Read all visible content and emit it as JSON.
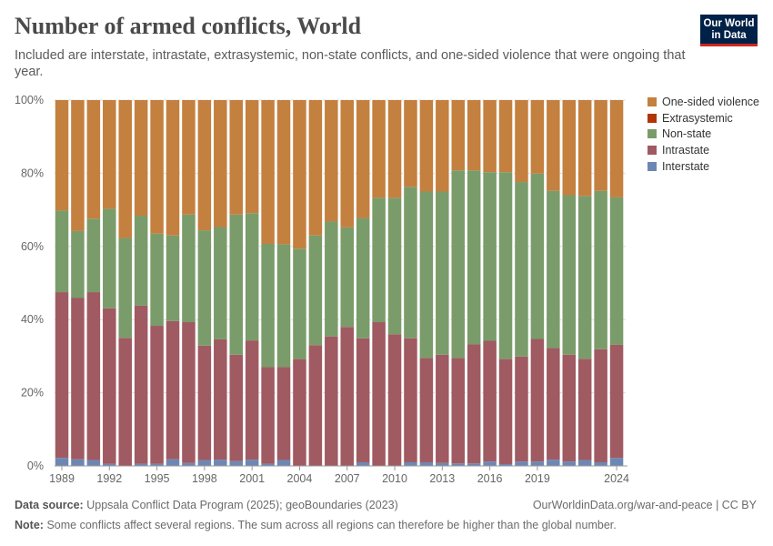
{
  "header": {
    "title": "Number of armed conflicts, World",
    "subtitle": "Included are interstate, intrastate, extrasystemic, non-state conflicts, and one-sided violence that were ongoing that year.",
    "logo": "Our World in Data"
  },
  "footer": {
    "source_label": "Data source:",
    "source": "Uppsala Conflict Data Program (2025); geoBoundaries (2023)",
    "url": "OurWorldinData.org/war-and-peace | CC BY",
    "note_label": "Note:",
    "note": "Some conflicts affect several regions. The sum across all regions can therefore be higher than the global number."
  },
  "chart_data": {
    "type": "bar",
    "stacked": true,
    "relative": true,
    "x": [
      1989,
      1990,
      1991,
      1992,
      1993,
      1994,
      1995,
      1996,
      1997,
      1998,
      1999,
      2000,
      2001,
      2002,
      2003,
      2004,
      2005,
      2006,
      2007,
      2008,
      2009,
      2010,
      2011,
      2012,
      2013,
      2014,
      2015,
      2016,
      2017,
      2018,
      2019,
      2020,
      2021,
      2022,
      2023,
      2024
    ],
    "x_tick_labels": [
      "1989",
      "1992",
      "1995",
      "1998",
      "2001",
      "2004",
      "2007",
      "2010",
      "2013",
      "2016",
      "2019",
      "2024"
    ],
    "y_tick_labels": [
      "0%",
      "20%",
      "40%",
      "60%",
      "80%",
      "100%"
    ],
    "ylim": [
      0,
      100
    ],
    "grid": "horizontal",
    "legend_position": "right",
    "series": [
      {
        "name": "Interstate",
        "color": "#6D87B4",
        "values": [
          2.2,
          1.8,
          1.6,
          0.6,
          0,
          0.6,
          0.6,
          1.8,
          0.8,
          1.6,
          1.7,
          1.3,
          1.7,
          0.6,
          1.6,
          0,
          0,
          0,
          0,
          1.0,
          0,
          0,
          1.0,
          1.0,
          0.8,
          0.7,
          0.7,
          1.2,
          0.5,
          1.2,
          1.2,
          1.7,
          1.2,
          1.6,
          1.0,
          2.2
        ]
      },
      {
        "name": "Intrastate",
        "color": "#A05A61",
        "values": [
          45.3,
          44.2,
          45.9,
          42.5,
          35.0,
          43.2,
          37.7,
          37.8,
          38.5,
          31.3,
          32.9,
          29.1,
          32.6,
          26.4,
          25.4,
          29.2,
          33.0,
          35.4,
          38.0,
          33.9,
          39.3,
          36.0,
          33.9,
          28.5,
          29.6,
          28.8,
          32.5,
          33.0,
          28.7,
          28.7,
          33.5,
          30.5,
          29.2,
          27.7,
          30.9,
          30.9
        ]
      },
      {
        "name": "Non-state",
        "color": "#7A9C6A",
        "values": [
          22.3,
          18.2,
          20.1,
          27.2,
          27.3,
          24.6,
          25.2,
          23.4,
          29.4,
          31.5,
          30.7,
          38.3,
          34.8,
          33.7,
          33.6,
          30.2,
          30.0,
          31.4,
          27.2,
          32.9,
          34.0,
          37.3,
          41.4,
          45.5,
          44.6,
          51.3,
          47.6,
          46.1,
          51.1,
          47.7,
          45.2,
          43.0,
          43.6,
          44.5,
          43.3,
          40.3
        ]
      },
      {
        "name": "Extrasystemic",
        "color": "#B13507",
        "values": [
          0,
          0,
          0,
          0,
          0,
          0,
          0,
          0,
          0,
          0,
          0,
          0,
          0,
          0,
          0,
          0,
          0,
          0,
          0,
          0,
          0,
          0,
          0,
          0,
          0,
          0,
          0,
          0,
          0,
          0,
          0,
          0,
          0,
          0,
          0,
          0
        ]
      },
      {
        "name": "One-sided violence",
        "color": "#C4803F",
        "values": [
          30.2,
          35.8,
          32.4,
          29.7,
          37.7,
          31.6,
          36.5,
          37.0,
          31.3,
          35.6,
          34.7,
          31.3,
          30.9,
          39.3,
          39.4,
          40.6,
          37.0,
          33.2,
          34.8,
          32.2,
          26.7,
          26.7,
          23.7,
          25.0,
          25.0,
          19.2,
          19.2,
          19.7,
          19.7,
          22.4,
          20.1,
          24.8,
          26.0,
          26.2,
          24.8,
          26.6
        ]
      }
    ],
    "legend_order": [
      "One-sided violence",
      "Extrasystemic",
      "Non-state",
      "Intrastate",
      "Interstate"
    ]
  }
}
